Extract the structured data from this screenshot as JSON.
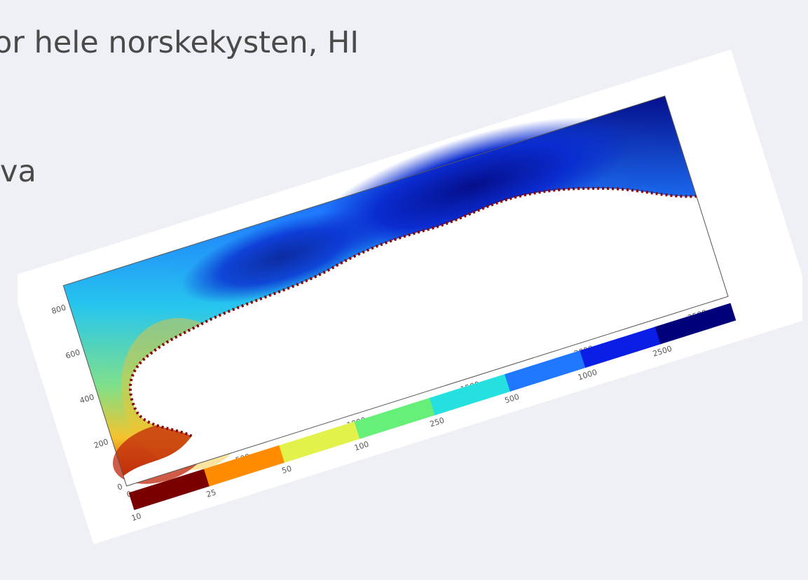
{
  "slide": {
    "line1": "or hele norskekysten, HI",
    "line2": "va"
  },
  "map": {
    "x_ticks": [
      "0",
      "500",
      "1000",
      "1500",
      "2000",
      "2500"
    ],
    "y_ticks": [
      "0",
      "200",
      "400",
      "600",
      "800"
    ],
    "colorbar": {
      "tick_labels": [
        "10",
        "25",
        "50",
        "100",
        "250",
        "500",
        "1000",
        "2500"
      ],
      "colors": [
        "#7a0000",
        "#ff8c00",
        "#e3f24a",
        "#66f07a",
        "#24e0de",
        "#1f78ff",
        "#0a1ee6",
        "#00007a"
      ]
    },
    "colors": {
      "deep_ocean": "#050f8c",
      "mid_ocean": "#27c6ee",
      "shelf": "#7fe08a",
      "shallow": "#f6c32b",
      "very_shallow": "#c0260a",
      "land": "#ffffff"
    }
  }
}
